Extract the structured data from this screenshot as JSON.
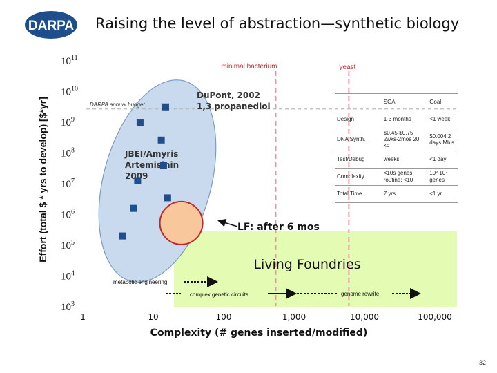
{
  "header": {
    "logo_text": "DARPA",
    "title": "Raising the level of abstraction—synthetic biology"
  },
  "page_number": "32",
  "colors": {
    "point": "#1f4e8c",
    "ellipse_fill": "#c9d9ee",
    "ellipse_stroke": "#7d9ac4",
    "green_region": "#e4fbb4",
    "circle_fill": "#f8c79b",
    "circle_stroke": "#c0282d",
    "dashed_line": "#e99aa0",
    "logo": "#1f4e8c"
  },
  "chart_data": {
    "type": "scatter",
    "xlabel": "Complexity (# genes inserted/modified)",
    "ylabel": "Effort (total $ * yrs to develop) [$*yr]",
    "x_scale": "log",
    "y_scale": "log",
    "xlim": [
      1,
      100000
    ],
    "ylim": [
      1000,
      100000000000
    ],
    "x_ticks": [
      "1",
      "10",
      "100",
      "1,000",
      "10,000",
      "100,000"
    ],
    "y_ticks": [
      {
        "base": "10",
        "exp": "11"
      },
      {
        "base": "10",
        "exp": "10"
      },
      {
        "base": "10",
        "exp": "9"
      },
      {
        "base": "10",
        "exp": "8"
      },
      {
        "base": "10",
        "exp": "7"
      },
      {
        "base": "10",
        "exp": "6"
      },
      {
        "base": "10",
        "exp": "5"
      },
      {
        "base": "10",
        "exp": "4"
      },
      {
        "base": "10",
        "exp": "3"
      }
    ],
    "points": [
      {
        "x": 3.7,
        "y": 190000
      },
      {
        "x": 5.2,
        "y": 1500000
      },
      {
        "x": 6.0,
        "y": 12000000
      },
      {
        "x": 6.5,
        "y": 900000000
      },
      {
        "x": 13,
        "y": 250000000
      },
      {
        "x": 14,
        "y": 37000000
      },
      {
        "x": 16,
        "y": 3300000
      },
      {
        "x": 15,
        "y": 3000000000
      }
    ],
    "hline_annotation": {
      "label": "DARPA annual budget",
      "y": 3000000000
    },
    "vline_annotations": [
      {
        "label": "minimal bacterium",
        "x": 550
      },
      {
        "label": "yeast",
        "x": 6000
      }
    ],
    "text_annotations": {
      "dupont": "DuPont, 2002 1,3 propanediol",
      "jbei": "JBEI/Amyris Artemisinin 2009",
      "living_foundries": "Living Foundries",
      "lf_after": "LF: after 6 mos",
      "metabolic": "metabolic engineering",
      "circuits": "complex genetic circuits",
      "genome": "genome rewrite"
    },
    "lf_target": {
      "x": 25,
      "y": 500000
    },
    "table": {
      "headers": [
        "",
        "SOA",
        "Goal"
      ],
      "rows": [
        [
          "Design",
          "1-3 months",
          "<1 week"
        ],
        [
          "DNA Synth.",
          "$0.45-$0.75 2wks-2mos 20 kb",
          "$0.004 2 days Mb's"
        ],
        [
          "Test/Debug",
          "weeks",
          "<1 day"
        ],
        [
          "Complexity",
          "<10s genes routine: <10",
          "10³-10⁴ genes"
        ],
        [
          "Total Time",
          "7 yrs",
          "<1 yr"
        ]
      ]
    }
  }
}
